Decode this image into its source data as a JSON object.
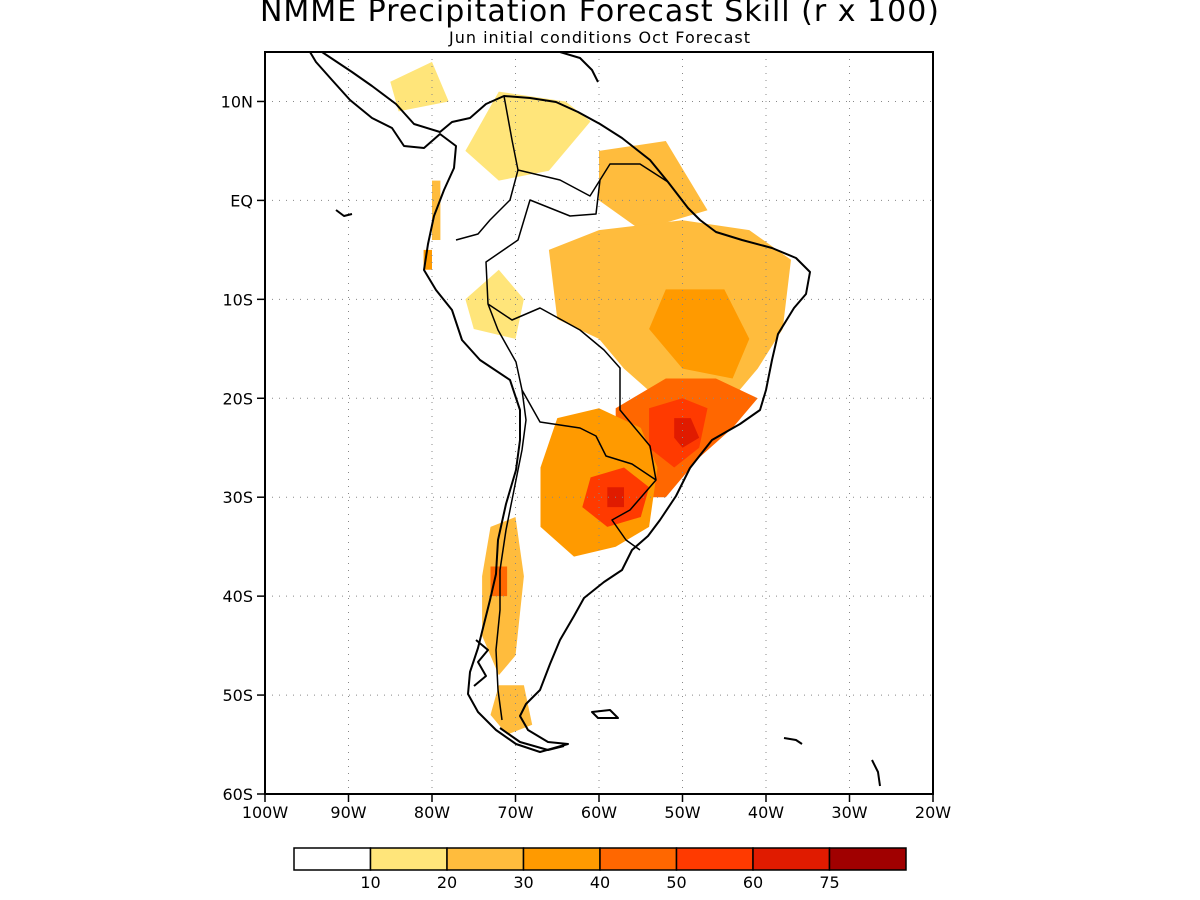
{
  "title": "NMME Precipitation Forecast Skill (r x 100)",
  "subtitle": "Jun initial conditions  Oct Forecast",
  "map": {
    "lon_range": [
      -100,
      -20
    ],
    "lat_range": [
      -60,
      15
    ],
    "lon_ticks": [
      {
        "lon": -100,
        "label": "100W"
      },
      {
        "lon": -90,
        "label": "90W"
      },
      {
        "lon": -80,
        "label": "80W"
      },
      {
        "lon": -70,
        "label": "70W"
      },
      {
        "lon": -60,
        "label": "60W"
      },
      {
        "lon": -50,
        "label": "50W"
      },
      {
        "lon": -40,
        "label": "40W"
      },
      {
        "lon": -30,
        "label": "30W"
      },
      {
        "lon": -20,
        "label": "20W"
      }
    ],
    "lat_ticks": [
      {
        "lat": 10,
        "label": "10N"
      },
      {
        "lat": 0,
        "label": "EQ"
      },
      {
        "lat": -10,
        "label": "10S"
      },
      {
        "lat": -20,
        "label": "20S"
      },
      {
        "lat": -30,
        "label": "30S"
      },
      {
        "lat": -40,
        "label": "40S"
      },
      {
        "lat": -50,
        "label": "50S"
      },
      {
        "lat": -60,
        "label": "60S"
      }
    ],
    "gridlines": "dotted",
    "coastlines": "black",
    "skill_regions": [
      {
        "name": "central-america",
        "level": 1,
        "lonlat": [
          [
            -85,
            12
          ],
          [
            -80,
            14
          ],
          [
            -78,
            10
          ],
          [
            -84,
            9
          ]
        ]
      },
      {
        "name": "colombia-venezuela",
        "level": 1,
        "lonlat": [
          [
            -76,
            5
          ],
          [
            -72,
            11
          ],
          [
            -64,
            10
          ],
          [
            -61,
            8
          ],
          [
            -66,
            3
          ],
          [
            -72,
            2
          ]
        ]
      },
      {
        "name": "guiana-north-brazil",
        "level": 2,
        "lonlat": [
          [
            -60,
            5
          ],
          [
            -52,
            6
          ],
          [
            -47,
            -1
          ],
          [
            -55,
            -3
          ],
          [
            -60,
            0
          ]
        ]
      },
      {
        "name": "amazon-brazil",
        "level": 2,
        "lonlat": [
          [
            -66,
            -5
          ],
          [
            -60,
            -3
          ],
          [
            -50,
            -2
          ],
          [
            -42,
            -3
          ],
          [
            -37,
            -6
          ],
          [
            -38,
            -13
          ],
          [
            -41,
            -17
          ],
          [
            -46,
            -22
          ],
          [
            -53,
            -20
          ],
          [
            -57,
            -17
          ],
          [
            -60,
            -14
          ],
          [
            -65,
            -12
          ]
        ]
      },
      {
        "name": "central-brazil",
        "level": 3,
        "lonlat": [
          [
            -52,
            -9
          ],
          [
            -45,
            -9
          ],
          [
            -42,
            -14
          ],
          [
            -44,
            -18
          ],
          [
            -50,
            -17
          ],
          [
            -54,
            -13
          ]
        ]
      },
      {
        "name": "ecuador-coast",
        "level": 2,
        "lonlat": [
          [
            -80,
            2
          ],
          [
            -79,
            2
          ],
          [
            -79,
            -4
          ],
          [
            -80,
            -4
          ]
        ]
      },
      {
        "name": "peru-coast",
        "level": 3,
        "lonlat": [
          [
            -81,
            -5
          ],
          [
            -80,
            -5
          ],
          [
            -80,
            -7
          ],
          [
            -81,
            -7
          ]
        ]
      },
      {
        "name": "andes-peru",
        "level": 1,
        "lonlat": [
          [
            -76,
            -10
          ],
          [
            -72,
            -7
          ],
          [
            -69,
            -10
          ],
          [
            -70,
            -14
          ],
          [
            -75,
            -13
          ]
        ]
      },
      {
        "name": "southeast-brazil",
        "level": 4,
        "lonlat": [
          [
            -58,
            -21
          ],
          [
            -52,
            -18
          ],
          [
            -46,
            -18
          ],
          [
            -41,
            -20
          ],
          [
            -44,
            -23
          ],
          [
            -48,
            -26
          ],
          [
            -52,
            -30
          ],
          [
            -56,
            -30
          ],
          [
            -58,
            -26
          ]
        ]
      },
      {
        "name": "southeast-core",
        "level": 5,
        "lonlat": [
          [
            -54,
            -21
          ],
          [
            -50,
            -20
          ],
          [
            -47,
            -21
          ],
          [
            -48,
            -25
          ],
          [
            -51,
            -27
          ],
          [
            -54,
            -25
          ]
        ]
      },
      {
        "name": "southeast-max",
        "level": 6,
        "lonlat": [
          [
            -51,
            -22
          ],
          [
            -49,
            -22
          ],
          [
            -48,
            -24
          ],
          [
            -50,
            -25
          ],
          [
            -51,
            -24
          ]
        ]
      },
      {
        "name": "paraguay-argentina",
        "level": 3,
        "lonlat": [
          [
            -65,
            -22
          ],
          [
            -60,
            -21
          ],
          [
            -55,
            -23
          ],
          [
            -53,
            -27
          ],
          [
            -54,
            -33
          ],
          [
            -58,
            -35
          ],
          [
            -63,
            -36
          ],
          [
            -67,
            -33
          ],
          [
            -67,
            -27
          ]
        ]
      },
      {
        "name": "northeast-argentina",
        "level": 5,
        "lonlat": [
          [
            -61,
            -28
          ],
          [
            -57,
            -27
          ],
          [
            -54,
            -29
          ],
          [
            -55,
            -32
          ],
          [
            -59,
            -33
          ],
          [
            -62,
            -31
          ]
        ]
      },
      {
        "name": "argentina-core",
        "level": 6,
        "lonlat": [
          [
            -59,
            -29
          ],
          [
            -57,
            -29
          ],
          [
            -57,
            -31
          ],
          [
            -59,
            -31
          ]
        ]
      },
      {
        "name": "chile-andes",
        "level": 2,
        "lonlat": [
          [
            -73,
            -33
          ],
          [
            -70,
            -32
          ],
          [
            -69,
            -38
          ],
          [
            -70,
            -46
          ],
          [
            -72,
            -48
          ],
          [
            -74,
            -44
          ],
          [
            -74,
            -38
          ]
        ]
      },
      {
        "name": "chile-south",
        "level": 4,
        "lonlat": [
          [
            -73,
            -37
          ],
          [
            -71,
            -37
          ],
          [
            -71,
            -40
          ],
          [
            -73,
            -40
          ]
        ]
      },
      {
        "name": "patagonia-south",
        "level": 2,
        "lonlat": [
          [
            -72,
            -49
          ],
          [
            -69,
            -49
          ],
          [
            -68,
            -53
          ],
          [
            -71,
            -54
          ],
          [
            -73,
            -52
          ]
        ]
      }
    ]
  },
  "legend": {
    "colors": [
      "#ffffff",
      "#ffe57a",
      "#ffbc3d",
      "#ff9a00",
      "#ff6700",
      "#ff3a00",
      "#e01b00",
      "#a00000"
    ],
    "labels": [
      "10",
      "20",
      "30",
      "40",
      "50",
      "60",
      "75"
    ]
  }
}
